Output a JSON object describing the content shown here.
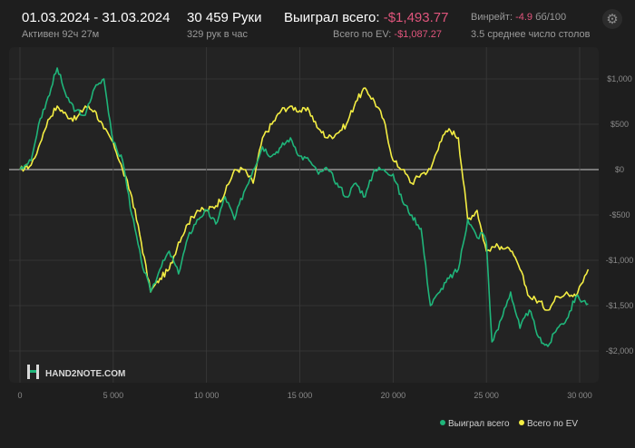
{
  "header": {
    "date_range": "01.03.2024 - 31.03.2024",
    "active_time": "Активен 92ч 27м",
    "hands": "30 459 Руки",
    "hands_per_hour": "329 рук в час",
    "won_label": "Выиграл всего:",
    "won_value": "-$1,493.77",
    "ev_label": "Всего по EV:",
    "ev_value": "-$1,087.27",
    "winrate_label": "Винрейт:",
    "winrate_value": "-4.9",
    "winrate_unit": "бб/100",
    "tables": "3.5 среднее число столов"
  },
  "icons": {
    "settings": "gear-icon",
    "logo": "hand2note-logo"
  },
  "logo_text": "HAND2NOTE.COM",
  "colors": {
    "background": "#1e1e1e",
    "plot_background": "#232323",
    "won_series": "#1fb57a",
    "ev_series": "#f4ee43",
    "negative": "#e0557c",
    "grid": "#3a3a3a",
    "zero_line": "#cfcfcf"
  },
  "chart_data": {
    "type": "line",
    "xlabel": "",
    "ylabel": "",
    "xlim": [
      0,
      30459
    ],
    "ylim": [
      -2150,
      1350
    ],
    "grid": true,
    "legend_position": "bottom-right",
    "x_ticks": [
      0,
      5000,
      10000,
      15000,
      20000,
      25000,
      30000
    ],
    "x_tick_labels": [
      "0",
      "5 000",
      "10 000",
      "15 000",
      "20 000",
      "25 000",
      "30 000"
    ],
    "y_ticks": [
      1000,
      500,
      0,
      -500,
      -1000,
      -1500,
      -2000
    ],
    "y_tick_labels": [
      "$1,000",
      "$500",
      "$0",
      "-$500",
      "-$1,000",
      "-$1,500",
      "-$2,000"
    ],
    "series": [
      {
        "name": "Выиграл всего",
        "color": "#1fb57a",
        "x": [
          0,
          600,
          1000,
          1500,
          2000,
          2500,
          3000,
          3500,
          4000,
          4500,
          5000,
          5500,
          6000,
          6500,
          7000,
          7500,
          8000,
          8500,
          9000,
          9500,
          10000,
          10500,
          11000,
          11500,
          12000,
          12500,
          13000,
          13500,
          14000,
          14500,
          15000,
          15500,
          16000,
          16500,
          17000,
          17500,
          18000,
          18500,
          19000,
          19500,
          20000,
          20500,
          21000,
          21500,
          22000,
          22500,
          23000,
          23500,
          24000,
          24500,
          24800,
          25000,
          25300,
          25800,
          26300,
          26800,
          27300,
          27800,
          28300,
          28800,
          29300,
          29800,
          30459
        ],
        "y": [
          0,
          100,
          500,
          800,
          1120,
          800,
          650,
          600,
          900,
          1000,
          300,
          100,
          -500,
          -1000,
          -1350,
          -1100,
          -900,
          -1150,
          -750,
          -550,
          -450,
          -600,
          -300,
          -550,
          -250,
          0,
          250,
          150,
          250,
          350,
          150,
          100,
          -50,
          0,
          -150,
          -300,
          -150,
          -300,
          0,
          0,
          -50,
          -350,
          -500,
          -650,
          -1500,
          -1350,
          -1200,
          -1100,
          -550,
          -750,
          -700,
          -800,
          -1900,
          -1650,
          -1350,
          -1750,
          -1550,
          -1850,
          -1950,
          -1750,
          -1650,
          -1400,
          -1480
        ]
      },
      {
        "name": "Всего по EV",
        "color": "#f4ee43",
        "x": [
          0,
          600,
          1000,
          1500,
          2000,
          2500,
          3000,
          3500,
          4000,
          4500,
          5000,
          5500,
          6000,
          6500,
          7000,
          7500,
          8000,
          8500,
          9000,
          9500,
          10000,
          10500,
          11000,
          11500,
          12000,
          12500,
          13000,
          13500,
          14000,
          14500,
          15000,
          15500,
          16000,
          16500,
          17000,
          17500,
          18000,
          18500,
          19000,
          19500,
          20000,
          20500,
          21000,
          21500,
          22000,
          22500,
          23000,
          23500,
          24000,
          24500,
          25000,
          25300,
          25800,
          26300,
          26800,
          27300,
          27800,
          28300,
          28800,
          29300,
          29800,
          30459
        ],
        "y": [
          0,
          50,
          250,
          550,
          700,
          600,
          550,
          700,
          650,
          450,
          300,
          0,
          -300,
          -800,
          -1350,
          -1200,
          -1100,
          -800,
          -600,
          -450,
          -450,
          -400,
          -250,
          0,
          0,
          -150,
          350,
          500,
          650,
          700,
          650,
          650,
          450,
          350,
          400,
          500,
          750,
          900,
          750,
          550,
          100,
          0,
          -150,
          -50,
          0,
          300,
          450,
          350,
          -550,
          -450,
          -900,
          -850,
          -850,
          -900,
          -1100,
          -1400,
          -1450,
          -1550,
          -1400,
          -1350,
          -1400,
          -1100
        ]
      }
    ]
  }
}
